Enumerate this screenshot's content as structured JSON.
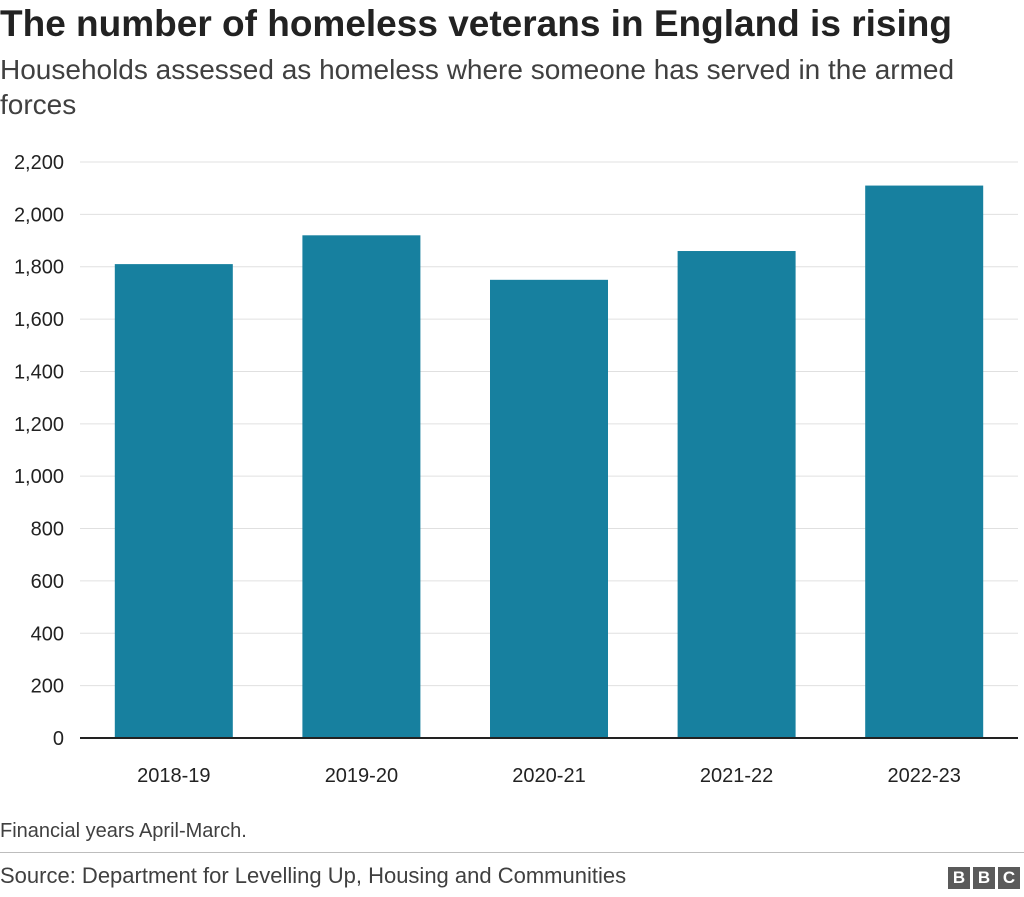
{
  "title": "The number of homeless veterans in England is rising",
  "subtitle": "Households assessed as homeless where someone has served in the armed forces",
  "note": "Financial years April-March.",
  "source": "Source: Department for Levelling Up, Housing and Communities",
  "logo": [
    "B",
    "B",
    "C"
  ],
  "colors": {
    "bar": "#17809f",
    "axis": "#222222",
    "grid": "#e0e0e0",
    "text": "#222222"
  },
  "chart_data": {
    "type": "bar",
    "categories": [
      "2018-19",
      "2019-20",
      "2020-21",
      "2021-22",
      "2022-23"
    ],
    "values": [
      1810,
      1920,
      1750,
      1860,
      2110
    ],
    "ylim": [
      0,
      2200
    ],
    "yticks": [
      0,
      200,
      400,
      600,
      800,
      1000,
      1200,
      1400,
      1600,
      1800,
      2000,
      2200
    ],
    "ytick_labels": [
      "0",
      "200",
      "400",
      "600",
      "800",
      "1,000",
      "1,200",
      "1,400",
      "1,600",
      "1,800",
      "2,000",
      "2,200"
    ],
    "grid": "horizontal",
    "legend": "none"
  }
}
